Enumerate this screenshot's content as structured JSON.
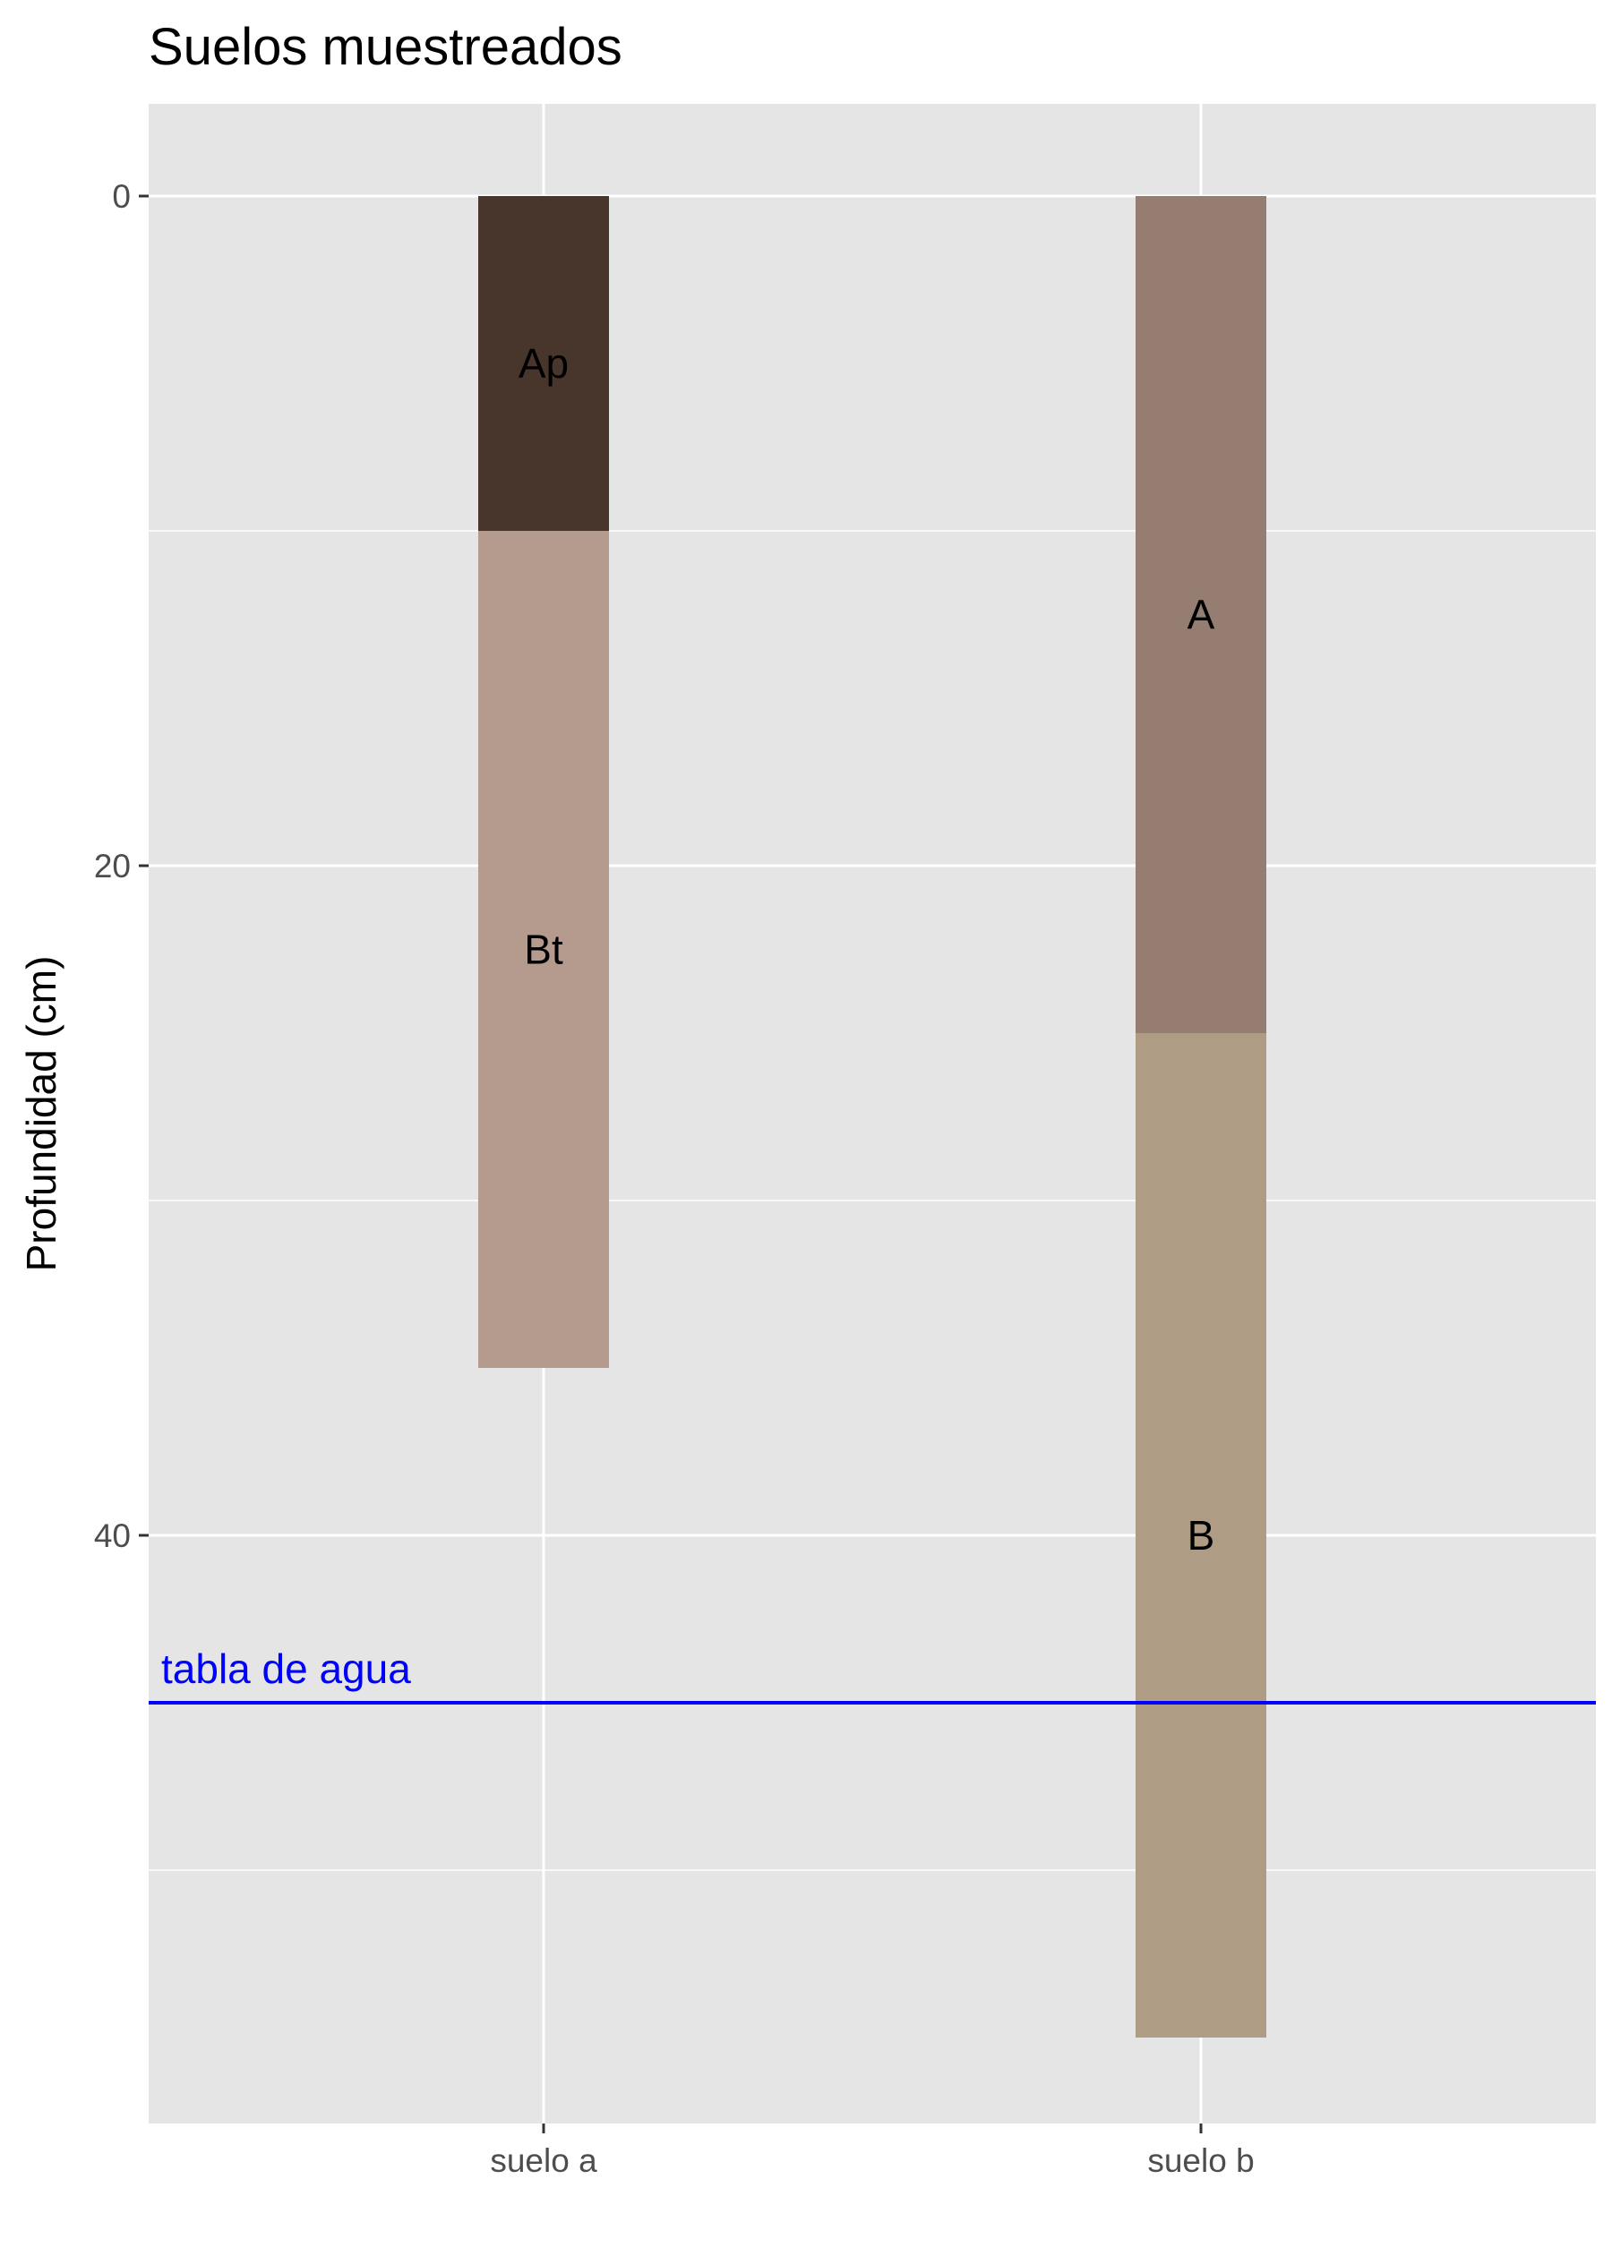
{
  "chart_data": {
    "type": "bar",
    "title": "Suelos muestreados",
    "xlabel": "",
    "ylabel": "Profundidad (cm)",
    "y_reversed": true,
    "ylim": [
      0,
      57
    ],
    "yticks": [
      "0",
      "20",
      "40"
    ],
    "ytick_values": [
      0,
      20,
      40
    ],
    "categories": [
      "suelo a",
      "suelo b"
    ],
    "grid": true,
    "profiles": [
      {
        "name": "suelo a",
        "horizons": [
          {
            "label": "Ap",
            "top": 0,
            "bottom": 10,
            "color": "#48352B"
          },
          {
            "label": "Bt",
            "top": 10,
            "bottom": 35,
            "color": "#B49B8D"
          }
        ]
      },
      {
        "name": "suelo b",
        "horizons": [
          {
            "label": "A",
            "top": 0,
            "bottom": 25,
            "color": "#967D72"
          },
          {
            "label": "B",
            "top": 25,
            "bottom": 55,
            "color": "#AE9C84"
          }
        ]
      }
    ],
    "annotations": [
      {
        "text": "tabla de agua",
        "depth": 45,
        "color": "#0000FF"
      }
    ]
  }
}
